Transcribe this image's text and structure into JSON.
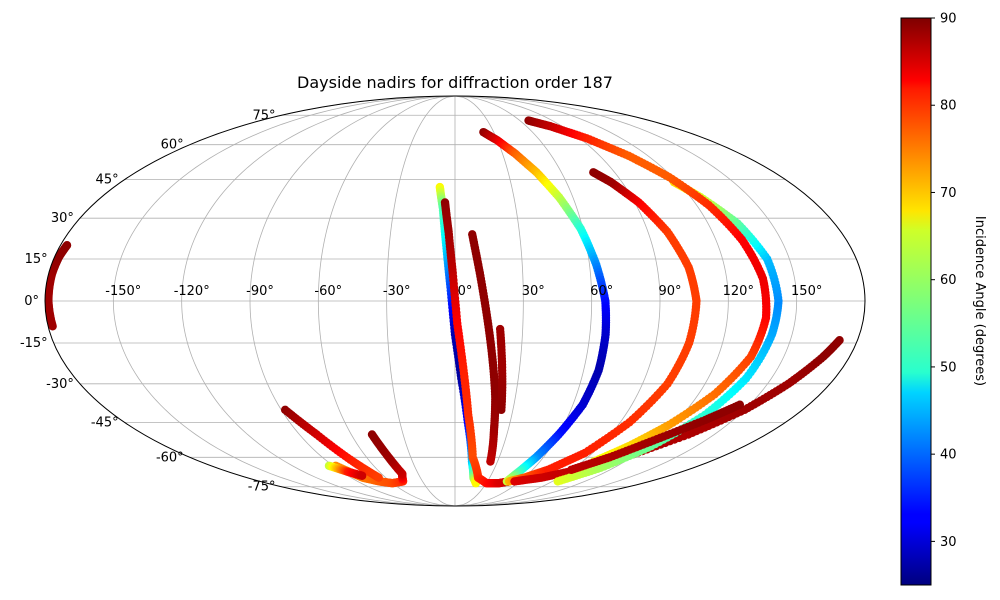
{
  "chart_data": {
    "type": "scatter",
    "projection": "mollweide",
    "title": "Dayside nadirs for diffraction order 187",
    "grid": true,
    "lon_ticks": [
      -150,
      -120,
      -90,
      -60,
      -30,
      0,
      30,
      60,
      90,
      120,
      150
    ],
    "lon_tick_labels": [
      "-150°",
      "-120°",
      "-90°",
      "-60°",
      "-30°",
      "0°",
      "30°",
      "60°",
      "90°",
      "120°",
      "150°"
    ],
    "lat_ticks": [
      -75,
      -60,
      -45,
      -30,
      -15,
      0,
      15,
      30,
      45,
      60,
      75
    ],
    "lat_tick_labels": [
      "-75°",
      "-60°",
      "-45°",
      "-30°",
      "-15°",
      "0°",
      "15°",
      "30°",
      "45°",
      "60°",
      "75°"
    ],
    "colorbar": {
      "label": "Incidence Angle (degrees)",
      "colormap": "jet",
      "range": [
        25,
        90
      ],
      "ticks": [
        30,
        40,
        50,
        60,
        70,
        80,
        90
      ],
      "tick_labels": [
        "30",
        "40",
        "50",
        "60",
        "70",
        "80",
        "90"
      ]
    },
    "series": [
      {
        "points": [
          [
            -178,
            -9,
            88
          ],
          [
            -178.5,
            0,
            88
          ],
          [
            -178.5,
            10,
            88
          ],
          [
            -178,
            16,
            89
          ],
          [
            -177,
            20,
            89
          ]
        ]
      },
      {
        "points": [
          [
            -88,
            -64,
            73
          ],
          [
            -80,
            -70,
            74
          ],
          [
            -70,
            -72,
            76
          ],
          [
            -60,
            -73,
            77
          ],
          [
            -48,
            -72,
            79
          ],
          [
            -43,
            -68,
            85
          ],
          [
            -45,
            -60,
            88
          ],
          [
            -48,
            -50,
            89
          ]
        ]
      },
      {
        "points": [
          [
            -88,
            -40,
            89
          ],
          [
            -80,
            -50,
            85
          ],
          [
            -72,
            -62,
            80
          ],
          [
            -66,
            -70,
            78
          ]
        ]
      },
      {
        "points": [
          [
            -93,
            -64,
            62
          ],
          [
            -85,
            -67,
            80
          ],
          [
            -78,
            -69,
            85
          ]
        ]
      },
      {
        "points": [
          [
            -8,
            42,
            66
          ],
          [
            -6,
            34,
            55
          ],
          [
            -4,
            20,
            48
          ],
          [
            -2,
            5,
            38
          ],
          [
            0,
            -12,
            28
          ],
          [
            3,
            -28,
            27
          ],
          [
            7,
            -45,
            33
          ],
          [
            12,
            -62,
            45
          ],
          [
            16,
            -70,
            58
          ],
          [
            20,
            -73,
            66
          ]
        ]
      },
      {
        "points": [
          [
            -5,
            36,
            89
          ],
          [
            -3,
            25,
            88
          ],
          [
            -1,
            10,
            86
          ],
          [
            1,
            -8,
            82
          ],
          [
            4,
            -25,
            80
          ],
          [
            7,
            -42,
            79
          ],
          [
            12,
            -60,
            77
          ],
          [
            20,
            -70,
            79
          ],
          [
            30,
            -73,
            81
          ],
          [
            42,
            -73,
            84
          ],
          [
            50,
            -72,
            85
          ]
        ]
      },
      {
        "points": [
          [
            8,
            24,
            89
          ],
          [
            11,
            10,
            89
          ],
          [
            14,
            -5,
            89
          ],
          [
            17,
            -20,
            89
          ],
          [
            20,
            -35,
            89
          ],
          [
            22,
            -48,
            88
          ],
          [
            25,
            -62,
            86
          ]
        ]
      },
      {
        "points": [
          [
            20,
            -10,
            88
          ],
          [
            22,
            -25,
            88
          ],
          [
            24,
            -40,
            89
          ]
        ]
      },
      {
        "points": [
          [
            22,
            66,
            89
          ],
          [
            30,
            62,
            84
          ],
          [
            38,
            56,
            76
          ],
          [
            46,
            48,
            70
          ],
          [
            53,
            38,
            62
          ],
          [
            59,
            26,
            52
          ],
          [
            63,
            13,
            42
          ],
          [
            66,
            0,
            34
          ],
          [
            67,
            -12,
            30
          ],
          [
            67,
            -25,
            28
          ],
          [
            65,
            -38,
            30
          ],
          [
            60,
            -50,
            34
          ],
          [
            55,
            -60,
            42
          ],
          [
            50,
            -68,
            55
          ],
          [
            48,
            -72,
            62
          ]
        ]
      },
      {
        "points": [
          [
            50,
            -72,
            70
          ],
          [
            60,
            -70,
            76
          ],
          [
            72,
            -66,
            80
          ],
          [
            85,
            -58,
            80
          ],
          [
            95,
            -45,
            79
          ],
          [
            102,
            -30,
            78
          ],
          [
            105,
            -15,
            78
          ],
          [
            106,
            0,
            78
          ],
          [
            104,
            12,
            78
          ],
          [
            99,
            25,
            78
          ],
          [
            92,
            36,
            82
          ],
          [
            84,
            44,
            88
          ],
          [
            78,
            48,
            89
          ]
        ]
      },
      {
        "points": [
          [
            55,
            -72,
            84
          ],
          [
            75,
            -70,
            85
          ],
          [
            95,
            -66,
            86
          ],
          [
            115,
            -60,
            87
          ],
          [
            135,
            -50,
            87
          ],
          [
            150,
            -40,
            88
          ],
          [
            160,
            -30,
            88
          ],
          [
            168,
            -20,
            89
          ],
          [
            172,
            -14,
            89
          ]
        ]
      },
      {
        "points": [
          [
            95,
            -72,
            64
          ],
          [
            110,
            -65,
            60
          ],
          [
            122,
            -55,
            56
          ],
          [
            132,
            -42,
            52
          ],
          [
            138,
            -28,
            48
          ],
          [
            141,
            -12,
            44
          ],
          [
            142,
            0,
            42
          ],
          [
            140,
            15,
            45
          ],
          [
            134,
            28,
            55
          ],
          [
            125,
            38,
            63
          ],
          [
            118,
            44,
            68
          ]
        ]
      },
      {
        "points": [
          [
            68,
            72,
            89
          ],
          [
            80,
            69,
            86
          ],
          [
            95,
            63,
            80
          ],
          [
            108,
            55,
            76
          ],
          [
            118,
            46,
            76
          ],
          [
            126,
            35,
            79
          ],
          [
            132,
            22,
            82
          ],
          [
            136,
            8,
            83
          ],
          [
            137,
            -6,
            82
          ],
          [
            135,
            -20,
            78
          ],
          [
            128,
            -34,
            75
          ],
          [
            118,
            -46,
            72
          ],
          [
            108,
            -55,
            68
          ],
          [
            98,
            -62,
            65
          ]
        ]
      },
      {
        "points": [
          [
            90,
            -66,
            86
          ],
          [
            105,
            -60,
            87
          ],
          [
            120,
            -52,
            88
          ],
          [
            135,
            -44,
            89
          ],
          [
            145,
            -38,
            89
          ]
        ]
      }
    ]
  }
}
